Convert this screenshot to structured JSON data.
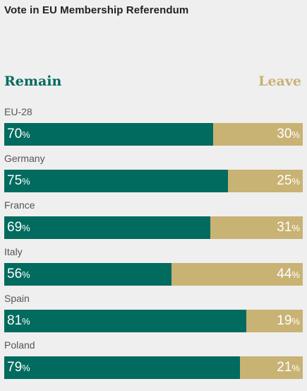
{
  "title": "Vote in EU Membership Referendum",
  "legend": {
    "remain": "Remain",
    "leave": "Leave"
  },
  "colors": {
    "remain": "#006b5e",
    "leave": "#c8b274",
    "background": "#efefef"
  },
  "chart_data": {
    "type": "bar",
    "orientation": "horizontal",
    "stacked": true,
    "title": "Vote in EU Membership Referendum",
    "categories": [
      "EU-28",
      "Germany",
      "France",
      "Italy",
      "Spain",
      "Poland"
    ],
    "series": [
      {
        "name": "Remain",
        "values": [
          70,
          75,
          69,
          56,
          81,
          79
        ]
      },
      {
        "name": "Leave",
        "values": [
          30,
          25,
          31,
          44,
          19,
          21
        ]
      }
    ],
    "unit": "%",
    "xlim": [
      0,
      100
    ],
    "legend_position": "top"
  }
}
